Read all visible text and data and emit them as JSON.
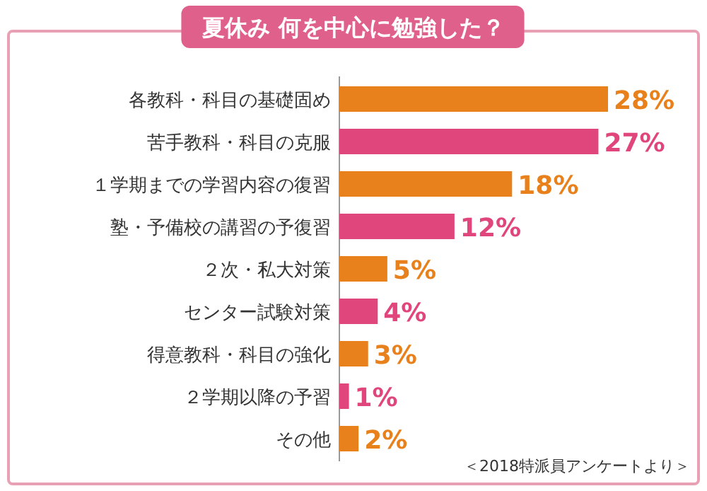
{
  "chart_data": {
    "type": "bar",
    "orientation": "horizontal",
    "title": "夏休み 何を中心に勉強した？",
    "categories": [
      "各教科・科目の基礎固め",
      "苦手教科・科目の克服",
      "１学期までの学習内容の復習",
      "塾・予備校の講習の予復習",
      "２次・私大対策",
      "センター試験対策",
      "得意教科・科目の強化",
      "２学期以降の予習",
      "その他"
    ],
    "values": [
      28,
      27,
      18,
      12,
      5,
      4,
      3,
      1,
      2
    ],
    "colors": [
      "#e8801c",
      "#e0457b",
      "#e8801c",
      "#e0457b",
      "#e8801c",
      "#e0457b",
      "#e8801c",
      "#e0457b",
      "#e8801c"
    ],
    "value_labels": [
      "28%",
      "27%",
      "18%",
      "12%",
      "5%",
      "4%",
      "3%",
      "1%",
      "2%"
    ],
    "annotations": [
      "＜2018特派員アンケートより＞"
    ]
  }
}
